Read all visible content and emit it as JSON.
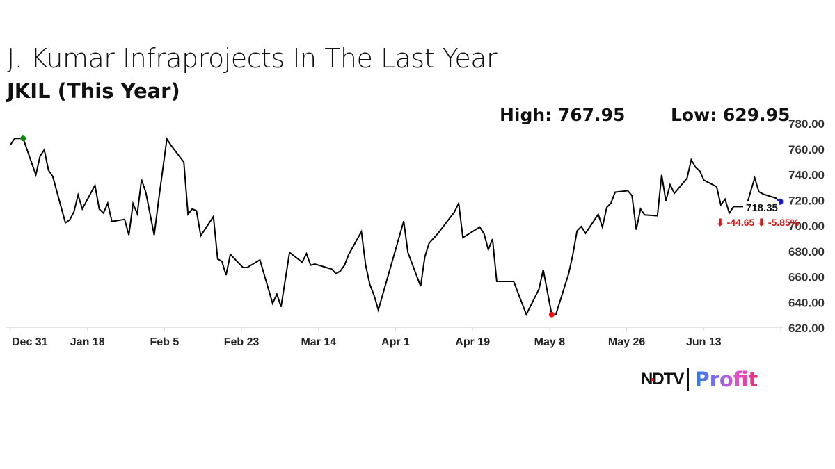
{
  "chart_data": {
    "type": "line",
    "title": "J. Kumar Infraprojects In The Last Year",
    "subtitle": "JKIL (This Year)",
    "high_label": "High: 767.95",
    "low_label": "Low: 629.95",
    "ylim": [
      620,
      780
    ],
    "y_ticks": [
      "780.00",
      "760.00",
      "740.00",
      "720.00",
      "700.00",
      "680.00",
      "660.00",
      "640.00",
      "620.00"
    ],
    "x_ticks": [
      "Dec 31",
      "Jan 18",
      "Feb 5",
      "Feb 23",
      "Mar 14",
      "Apr 1",
      "Apr 19",
      "May 8",
      "May 26",
      "Jun 13"
    ],
    "grid": false,
    "line_color": "#000000",
    "markers": {
      "high_color": "#118811",
      "low_color": "#ee1111",
      "last_color": "#1a1acc"
    },
    "last_value_label": "718.35",
    "change_label": "⬇ -44.65 ⬇ -5.85%",
    "change_color": "#e01010",
    "series": [
      {
        "x": [
          "Dec 31",
          "Jan 1",
          "Jan 2",
          "Jan 3",
          "Jan 6",
          "Jan 7",
          "Jan 8",
          "Jan 9",
          "Jan 10",
          "Jan 13",
          "Jan 14",
          "Jan 15",
          "Jan 16",
          "Jan 17",
          "Jan 20",
          "Jan 21",
          "Jan 22",
          "Jan 23",
          "Jan 24",
          "Jan 27",
          "Jan 28",
          "Jan 29",
          "Jan 30",
          "Jan 31",
          "Feb 1",
          "Feb 3",
          "Feb 4",
          "Feb 6",
          "Feb 7",
          "Feb 10",
          "Feb 11",
          "Feb 12",
          "Feb 13",
          "Feb 14",
          "Feb 17",
          "Feb 18",
          "Feb 19",
          "Feb 20",
          "Feb 21",
          "Feb 24",
          "Feb 25",
          "Feb 28",
          "Mar 3",
          "Mar 4",
          "Mar 5",
          "Mar 7",
          "Mar 10",
          "Mar 11",
          "Mar 12",
          "Mar 13",
          "Mar 17",
          "Mar 18",
          "Mar 19",
          "Mar 20",
          "Mar 21",
          "Mar 24",
          "Mar 25",
          "Mar 26",
          "Mar 27",
          "Mar 28",
          "Apr 3",
          "Apr 4",
          "Apr 7",
          "Apr 8",
          "Apr 9",
          "Apr 11",
          "Apr 15",
          "Apr 16",
          "Apr 17",
          "Apr 21",
          "Apr 22",
          "Apr 23",
          "Apr 24",
          "Apr 25",
          "Apr 29",
          "May 2",
          "May 5",
          "May 6",
          "May 8",
          "May 9",
          "May 12",
          "May 13",
          "May 14",
          "May 15",
          "May 16",
          "May 19",
          "May 20",
          "May 21",
          "May 22",
          "May 23",
          "May 26",
          "May 27",
          "May 28",
          "May 29",
          "May 30",
          "Jun 2",
          "Jun 3",
          "Jun 4",
          "Jun 5",
          "Jun 6",
          "Jun 9",
          "Jun 10",
          "Jun 11",
          "Jun 12",
          "Jun 13",
          "Jun 16",
          "Jun 17",
          "Jun 18",
          "Jun 19",
          "Jun 20",
          "Jun 23",
          "Jun 25",
          "Jun 26",
          "Jun 27",
          "Jun 30",
          "Jul 1"
        ],
        "values": [
          762.9,
          767.9,
          767.9,
          767.95,
          739.4,
          753.9,
          759,
          743,
          738.1,
          701.8,
          704,
          710.3,
          723.6,
          712.7,
          731.2,
          712.7,
          709.4,
          717.1,
          702.9,
          704.5,
          692.2,
          716.8,
          708.9,
          735.7,
          725.8,
          692.2,
          718.5,
          767.5,
          762.4,
          749.3,
          708.5,
          712.7,
          711.2,
          691.7,
          706.7,
          673.5,
          671.7,
          660.8,
          677.1,
          666.8,
          666.8,
          672.8,
          638.7,
          645.9,
          636,
          678.6,
          671,
          677.7,
          668.6,
          669.5,
          665.5,
          661.9,
          664,
          668.6,
          677.1,
          694.9,
          668.6,
          653.6,
          645,
          633.6,
          703.1,
          678.6,
          652.1,
          675,
          685.8,
          693.1,
          710.3,
          717.1,
          690.2,
          698.5,
          693.3,
          680.8,
          689.1,
          655.9,
          655.9,
          630,
          649.9,
          665,
          629.95,
          630,
          661.9,
          676.8,
          695.5,
          698.9,
          693.6,
          708.5,
          698.5,
          713.8,
          717.1,
          725.8,
          727,
          723,
          696.4,
          712.7,
          708,
          707.3,
          739.4,
          719,
          731.7,
          724.9,
          736.6,
          751.2,
          745.4,
          742.4,
          735.2,
          730.1,
          715.8,
          720.3,
          709.4,
          714.5,
          714.5,
          737,
          726.1,
          724.3,
          721.2,
          718.35
        ]
      }
    ]
  },
  "logo": {
    "ndtv": "NDTV",
    "profit": "Profit"
  }
}
